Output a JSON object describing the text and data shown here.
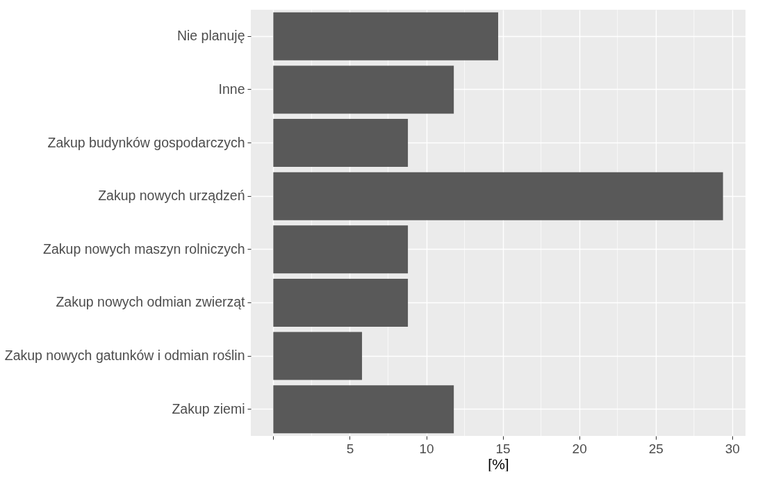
{
  "chart_data": {
    "type": "bar",
    "orientation": "horizontal",
    "xlabel": "[%]",
    "categories": [
      "Nie planuję",
      "Inne",
      "Zakup budynków gospodarczych",
      "Zakup nowych urządzeń",
      "Zakup nowych maszyn rolniczych",
      "Zakup nowych odmian zwierząt",
      "Zakup nowych gatunków i odmian roślin",
      "Zakup ziemi"
    ],
    "values": [
      14.7,
      11.8,
      8.8,
      29.4,
      8.8,
      8.8,
      5.8,
      11.8
    ],
    "color": "#595959",
    "xlim": [
      -1.47,
      30.87
    ],
    "xticks": [
      {
        "value": 0,
        "label": null
      },
      5,
      10,
      15,
      20,
      25,
      30
    ],
    "grid": true
  }
}
